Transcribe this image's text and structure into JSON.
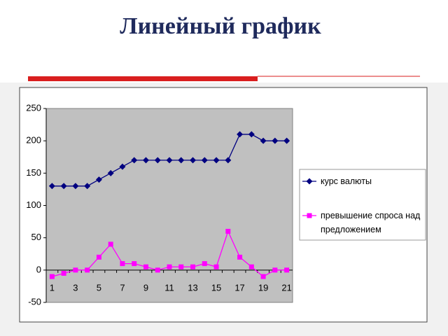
{
  "chart_data": {
    "type": "line",
    "title": "Линейный график",
    "categories": [
      "1",
      null,
      "3",
      null,
      "5",
      null,
      "7",
      null,
      "9",
      null,
      "11",
      null,
      "13",
      null,
      "15",
      null,
      "17",
      null,
      "19",
      null,
      "21"
    ],
    "series": [
      {
        "name": "курс валюты",
        "color": "#000080",
        "marker": "diamond",
        "values": [
          130,
          130,
          130,
          130,
          140,
          150,
          160,
          170,
          170,
          170,
          170,
          170,
          170,
          170,
          170,
          170,
          210,
          210,
          200,
          200,
          200
        ]
      },
      {
        "name": "превышение спроса над предложением",
        "color": "#ff00ff",
        "marker": "square",
        "values": [
          -10,
          -5,
          0,
          0,
          20,
          40,
          10,
          10,
          5,
          0,
          5,
          5,
          5,
          10,
          5,
          60,
          20,
          5,
          -10,
          0,
          0
        ]
      }
    ],
    "ylim": [
      -50,
      250
    ],
    "yticks": [
      -50,
      0,
      50,
      100,
      150,
      200,
      250
    ],
    "grid": false,
    "legend": "right"
  }
}
